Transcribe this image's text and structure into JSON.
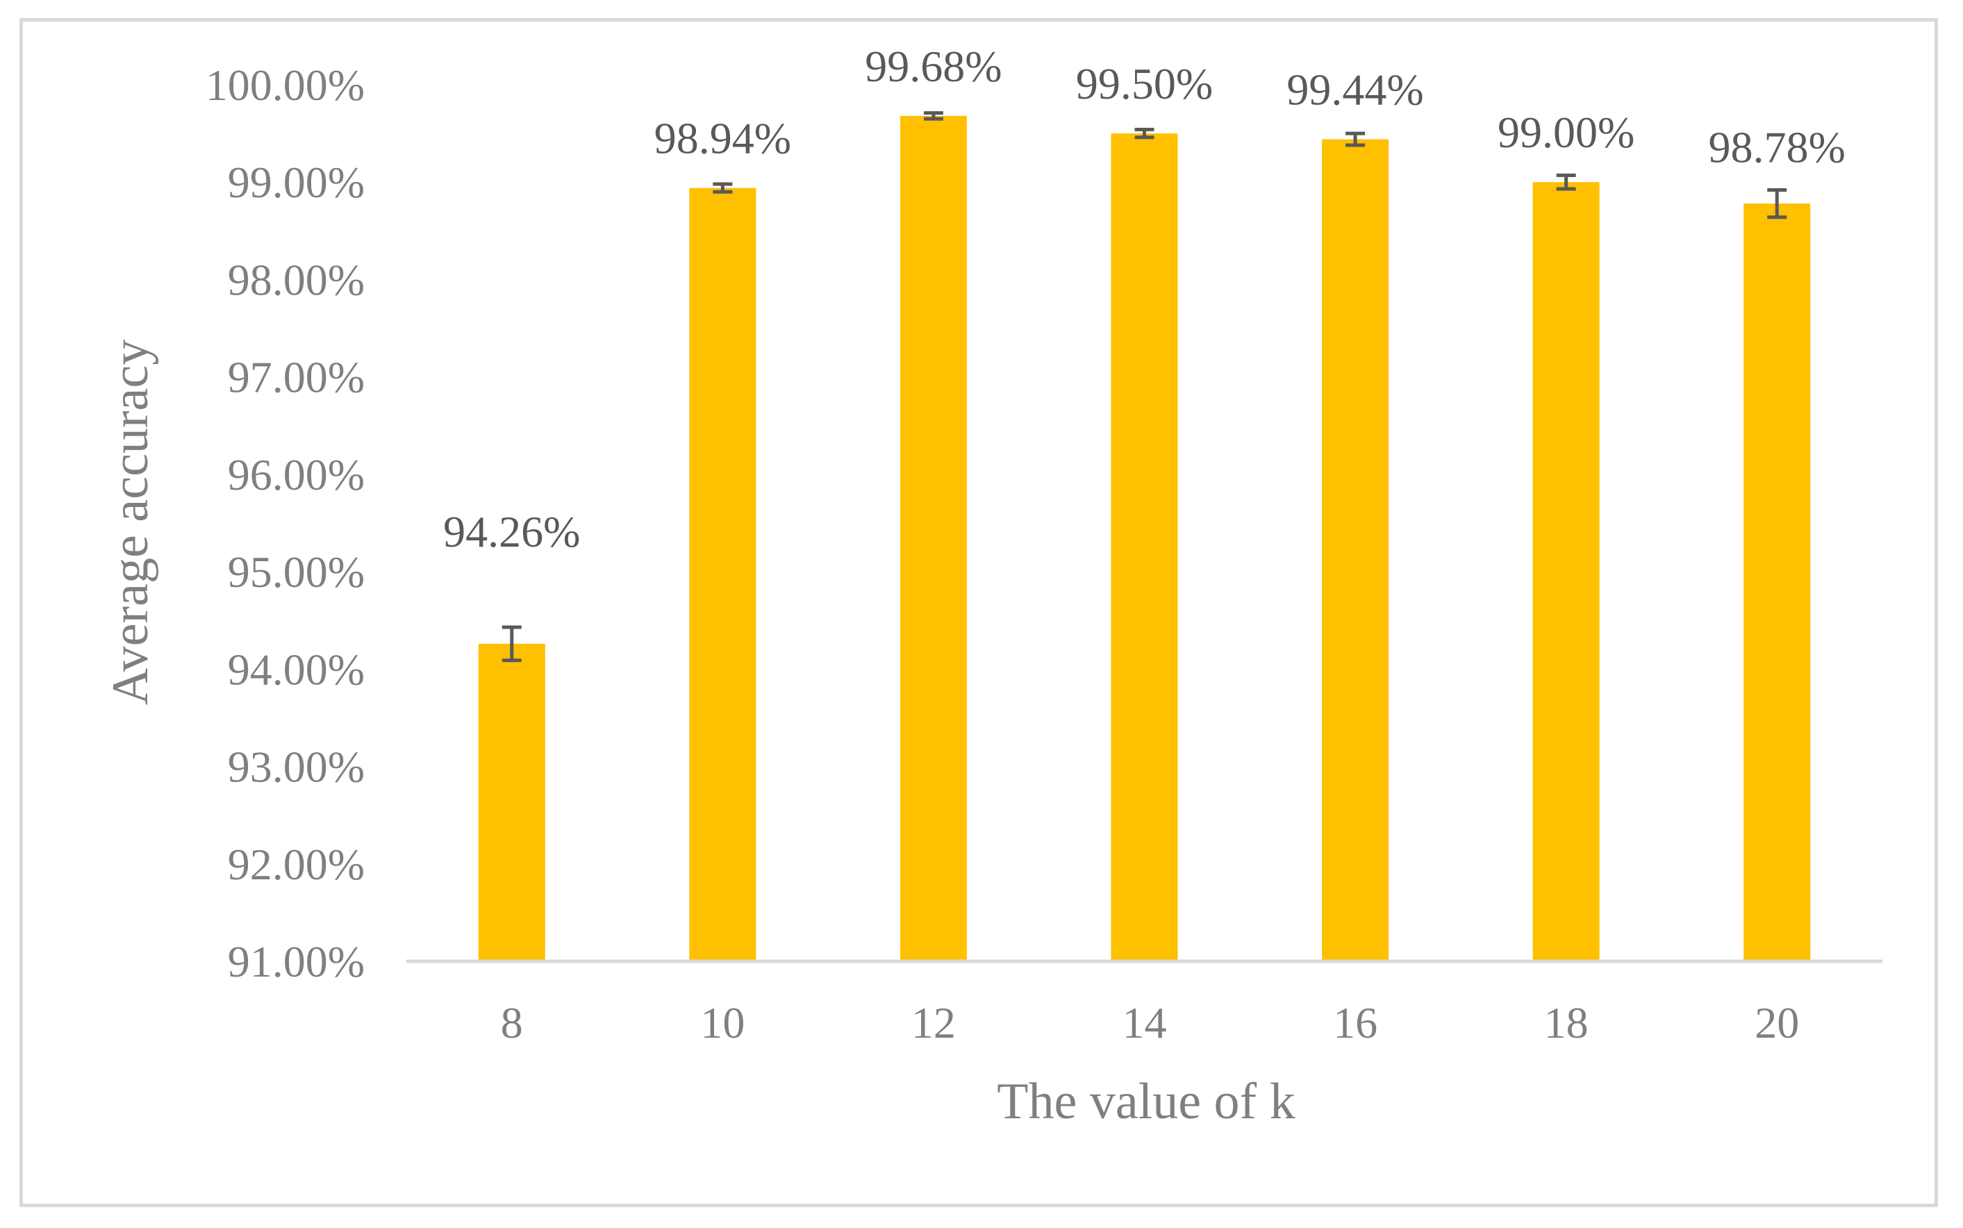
{
  "chart_data": {
    "type": "bar",
    "title": "",
    "xlabel": "The value of k",
    "ylabel": "Average accuracy",
    "categories": [
      "8",
      "10",
      "12",
      "14",
      "16",
      "18",
      "20"
    ],
    "values": [
      94.26,
      98.94,
      99.68,
      99.5,
      99.44,
      99.0,
      98.78
    ],
    "data_labels": [
      "94.26%",
      "98.94%",
      "99.68%",
      "99.50%",
      "99.44%",
      "99.00%",
      "98.78%"
    ],
    "error_bars": [
      0.17,
      0.04,
      0.03,
      0.04,
      0.06,
      0.07,
      0.14
    ],
    "ylim": [
      91,
      100
    ],
    "yticks": [
      91,
      92,
      93,
      94,
      95,
      96,
      97,
      98,
      99,
      100
    ],
    "ytick_labels": [
      "91.00%",
      "92.00%",
      "93.00%",
      "94.00%",
      "95.00%",
      "96.00%",
      "97.00%",
      "98.00%",
      "99.00%",
      "100.00%"
    ],
    "grid": false,
    "legend": "none",
    "colors": {
      "bar": "#ffc000",
      "error_bar": "#595959",
      "axis": "#d9d9d9",
      "tick_text": "#7f7f7f",
      "label_text": "#595959",
      "frame": "#d9d9d9"
    }
  }
}
